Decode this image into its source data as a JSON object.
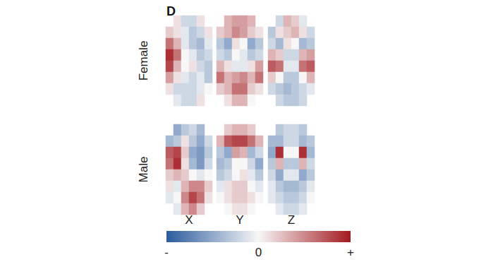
{
  "chart_data": {
    "type": "heatmap",
    "title": "D",
    "rows": [
      "Female",
      "Male"
    ],
    "columns": [
      "X",
      "Y",
      "Z"
    ],
    "cells": [
      [
        [
          [
            null,
            0.1,
            -0.2,
            -0.2,
            0.1,
            null
          ],
          [
            0.2,
            0.1,
            -0.1,
            -0.3,
            -0.2,
            0.1
          ],
          [
            0.6,
            0.3,
            -0.1,
            -0.3,
            -0.4,
            -0.1
          ],
          [
            0.9,
            0.6,
            0.0,
            -0.1,
            -0.3,
            -0.2
          ],
          [
            0.8,
            0.3,
            0.0,
            0.1,
            -0.2,
            -0.3
          ],
          [
            0.4,
            0.1,
            -0.1,
            -0.2,
            -0.1,
            -0.3
          ],
          [
            0.1,
            -0.2,
            -0.2,
            -0.2,
            -0.1,
            0.0
          ],
          [
            null,
            -0.1,
            -0.2,
            -0.2,
            0.1,
            null
          ]
        ],
        [
          [
            null,
            0.3,
            0.4,
            0.4,
            0.3,
            null
          ],
          [
            0.2,
            0.3,
            0.5,
            0.4,
            0.2,
            0.1
          ],
          [
            -0.3,
            -0.5,
            0.1,
            0.0,
            -0.5,
            -0.3
          ],
          [
            -0.2,
            -0.3,
            0.0,
            -0.1,
            -0.3,
            -0.2
          ],
          [
            0.3,
            0.1,
            -0.1,
            -0.1,
            0.1,
            0.4
          ],
          [
            0.6,
            0.3,
            0.4,
            0.5,
            0.3,
            0.6
          ],
          [
            0.2,
            0.3,
            0.6,
            0.6,
            0.2,
            0.1
          ],
          [
            null,
            0.1,
            0.3,
            0.3,
            0.0,
            null
          ]
        ],
        [
          [
            null,
            -0.2,
            0.3,
            0.2,
            -0.1,
            null
          ],
          [
            -0.3,
            0.1,
            0.2,
            0.3,
            0.1,
            -0.2
          ],
          [
            -0.2,
            -0.4,
            0.1,
            0.0,
            -0.4,
            -0.3
          ],
          [
            0.3,
            0.2,
            -0.2,
            -0.2,
            0.3,
            0.4
          ],
          [
            0.7,
            0.6,
            -0.1,
            -0.1,
            0.6,
            0.7
          ],
          [
            0.2,
            0.0,
            -0.3,
            -0.3,
            0.0,
            0.3
          ],
          [
            -0.2,
            -0.3,
            -0.4,
            -0.3,
            -0.2,
            -0.1
          ],
          [
            null,
            -0.2,
            -0.3,
            -0.3,
            -0.2,
            null
          ]
        ]
      ],
      [
        [
          [
            null,
            -0.5,
            -0.3,
            -0.2,
            -0.4,
            null
          ],
          [
            -0.4,
            -0.3,
            0.1,
            -0.3,
            -0.5,
            -0.2
          ],
          [
            0.7,
            0.8,
            0.2,
            -0.5,
            -0.6,
            -0.3
          ],
          [
            0.6,
            0.9,
            0.1,
            -0.4,
            -0.6,
            -0.2
          ],
          [
            0.2,
            0.3,
            0.2,
            0.0,
            -0.1,
            0.0
          ],
          [
            0.1,
            -0.1,
            0.3,
            0.5,
            0.5,
            0.2
          ],
          [
            -0.1,
            0.0,
            0.5,
            0.8,
            0.6,
            0.1
          ],
          [
            null,
            -0.1,
            0.3,
            0.5,
            0.2,
            null
          ]
        ],
        [
          [
            null,
            0.2,
            0.3,
            0.3,
            0.2,
            null
          ],
          [
            0.3,
            0.7,
            0.8,
            0.8,
            0.6,
            0.3
          ],
          [
            -0.3,
            -0.5,
            0.4,
            0.3,
            -0.4,
            -0.2
          ],
          [
            -0.4,
            -0.3,
            0.0,
            0.0,
            -0.2,
            -0.5
          ],
          [
            -0.3,
            -0.2,
            0.0,
            0.1,
            -0.1,
            -0.3
          ],
          [
            -0.1,
            0.1,
            0.2,
            0.2,
            0.0,
            -0.1
          ],
          [
            0.0,
            0.1,
            0.2,
            0.2,
            0.1,
            0.0
          ],
          [
            null,
            0.0,
            0.1,
            0.1,
            0.0,
            null
          ]
        ],
        [
          [
            null,
            -0.3,
            -0.2,
            -0.2,
            -0.3,
            null
          ],
          [
            -0.4,
            -0.4,
            -0.2,
            -0.2,
            -0.4,
            -0.3
          ],
          [
            -0.5,
            0.9,
            0.0,
            0.0,
            0.9,
            -0.4
          ],
          [
            -0.3,
            0.3,
            -0.3,
            -0.3,
            0.3,
            -0.2
          ],
          [
            -0.2,
            -0.5,
            -0.1,
            -0.1,
            -0.5,
            -0.3
          ],
          [
            -0.1,
            -0.3,
            -0.4,
            -0.4,
            -0.3,
            -0.1
          ],
          [
            -0.1,
            -0.2,
            -0.3,
            -0.3,
            -0.2,
            0.0
          ],
          [
            null,
            -0.1,
            -0.2,
            -0.2,
            -0.1,
            null
          ]
        ]
      ]
    ],
    "colorbar_range": [
      -1,
      1
    ],
    "colorbar_ticks": [
      {
        "value": -1,
        "label": "-"
      },
      0,
      {
        "value": 1,
        "label": "+"
      }
    ],
    "colors": [
      "#2b5b9e",
      "#f7f7f7",
      "#a3191f"
    ]
  }
}
